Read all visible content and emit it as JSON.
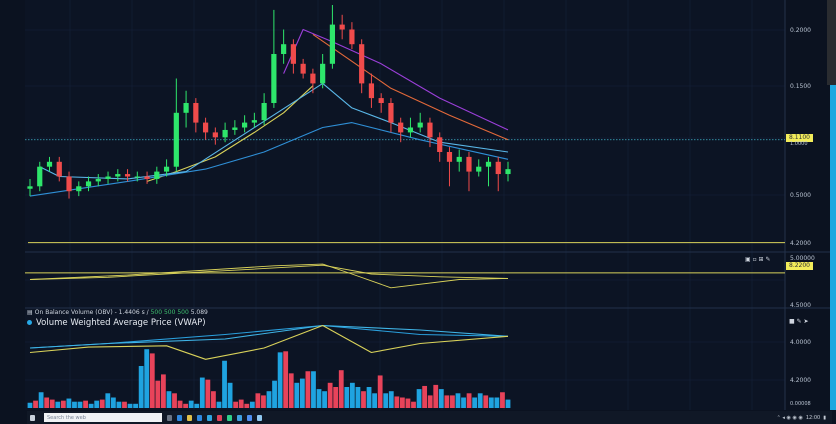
{
  "colors": {
    "up": "#2ee66b",
    "down": "#f04b4b",
    "ma_purple": "#9b3fd9",
    "ma_orange": "#e3693a",
    "ma_yellow": "#d9d25a",
    "ma_blue": "#2f8fd6",
    "ma_lightblue": "#5ab7e8",
    "vol_up": "#1fa3e0",
    "vol_down": "#e8435a",
    "vwap_blue": "#2a9fdc",
    "vwap_yellow": "#d9d25a",
    "background": "#0b1220"
  },
  "price_axis": [
    "0.2000",
    "0.1500",
    "0.5000",
    "4.2000"
  ],
  "price_tags": {
    "main": "8.1100",
    "main_sub": "1.0000",
    "oscillator": "8.2200"
  },
  "oscillator_axis": [
    "5.00000",
    "4.5000"
  ],
  "volume_axis": [
    "4.0000",
    "4.2000",
    "0.00008"
  ],
  "obv_legend": {
    "prefix": "On Balance Volume (OBV) - 1.4406 s /",
    "v1": "500",
    "v2": "500",
    "v3": "500",
    "suffix": "5.089"
  },
  "vwap_legend": "Volume Weighted Average Price (VWAP)",
  "taskbar": {
    "search_placeholder": "Search the web",
    "tray_time": "12:00"
  },
  "chart_data": {
    "type": "candlestick",
    "ohlc": [
      [
        25,
        29,
        22,
        26
      ],
      [
        26,
        36,
        24,
        34
      ],
      [
        34,
        38,
        32,
        36
      ],
      [
        36,
        38,
        28,
        30
      ],
      [
        30,
        32,
        21,
        24
      ],
      [
        24,
        28,
        22,
        26
      ],
      [
        26,
        30,
        24,
        28
      ],
      [
        28,
        31,
        26,
        29
      ],
      [
        29,
        32,
        27,
        30
      ],
      [
        30,
        33,
        28,
        31
      ],
      [
        31,
        33,
        28,
        30
      ],
      [
        30,
        32,
        28,
        30
      ],
      [
        30,
        32,
        27,
        29
      ],
      [
        29,
        34,
        27,
        32
      ],
      [
        32,
        37,
        30,
        34
      ],
      [
        34,
        70,
        32,
        56
      ],
      [
        56,
        65,
        50,
        60
      ],
      [
        60,
        62,
        48,
        52
      ],
      [
        52,
        54,
        45,
        48
      ],
      [
        48,
        50,
        43,
        46
      ],
      [
        46,
        52,
        44,
        49
      ],
      [
        49,
        53,
        47,
        50
      ],
      [
        50,
        55,
        48,
        52
      ],
      [
        52,
        56,
        50,
        53
      ],
      [
        53,
        64,
        51,
        60
      ],
      [
        60,
        98,
        58,
        80
      ],
      [
        80,
        90,
        76,
        84
      ],
      [
        84,
        86,
        72,
        76
      ],
      [
        76,
        78,
        70,
        72
      ],
      [
        72,
        74,
        64,
        68
      ],
      [
        68,
        80,
        66,
        76
      ],
      [
        76,
        100,
        74,
        92
      ],
      [
        92,
        96,
        86,
        90
      ],
      [
        90,
        93,
        82,
        84
      ],
      [
        84,
        86,
        64,
        68
      ],
      [
        68,
        72,
        58,
        62
      ],
      [
        62,
        64,
        56,
        60
      ],
      [
        60,
        62,
        48,
        52
      ],
      [
        52,
        54,
        44,
        48
      ],
      [
        48,
        54,
        46,
        50
      ],
      [
        50,
        56,
        48,
        52
      ],
      [
        52,
        54,
        42,
        46
      ],
      [
        46,
        48,
        36,
        40
      ],
      [
        40,
        42,
        26,
        36
      ],
      [
        36,
        41,
        32,
        38
      ],
      [
        38,
        40,
        24,
        32
      ],
      [
        32,
        37,
        30,
        34
      ],
      [
        34,
        38,
        26,
        36
      ],
      [
        36,
        38,
        24,
        31
      ],
      [
        31,
        36,
        28,
        33
      ]
    ],
    "moving_averages": [
      {
        "color": "ma_purple",
        "points": [
          [
            26,
            72
          ],
          [
            28,
            90
          ],
          [
            31,
            85
          ],
          [
            36,
            76
          ],
          [
            42,
            62
          ],
          [
            49,
            49
          ]
        ]
      },
      {
        "color": "ma_orange",
        "points": [
          [
            29,
            88
          ],
          [
            33,
            77
          ],
          [
            37,
            66
          ],
          [
            43,
            55
          ],
          [
            49,
            45
          ]
        ]
      },
      {
        "color": "ma_yellow",
        "points": [
          [
            12,
            28
          ],
          [
            15,
            32
          ],
          [
            19,
            38
          ],
          [
            23,
            48
          ],
          [
            26,
            56
          ],
          [
            29,
            67
          ]
        ]
      },
      {
        "color": "ma_blue",
        "points": [
          [
            0,
            22
          ],
          [
            10,
            28
          ],
          [
            18,
            33
          ],
          [
            24,
            40
          ],
          [
            30,
            50
          ],
          [
            33,
            52
          ],
          [
            40,
            45
          ],
          [
            49,
            37
          ]
        ]
      },
      {
        "color": "ma_lightblue",
        "points": [
          [
            1,
            34
          ],
          [
            3,
            30
          ],
          [
            10,
            29
          ],
          [
            16,
            32
          ],
          [
            30,
            68
          ],
          [
            33,
            58
          ],
          [
            37,
            52
          ],
          [
            42,
            44
          ],
          [
            49,
            40
          ]
        ]
      }
    ],
    "horizontal_lines": {
      "dotted_level": 45,
      "support_level": 3
    },
    "oscillator": {
      "lines": [
        [
          [
            0,
            30
          ],
          [
            10,
            38
          ],
          [
            25,
            55
          ],
          [
            30,
            58
          ],
          [
            33,
            40
          ],
          [
            37,
            15
          ],
          [
            44,
            30
          ],
          [
            49,
            32
          ]
        ],
        [
          [
            0,
            30
          ],
          [
            8,
            34
          ],
          [
            20,
            46
          ],
          [
            30,
            56
          ],
          [
            35,
            40
          ],
          [
            42,
            35
          ],
          [
            49,
            32
          ]
        ]
      ],
      "level": 42
    },
    "vwap": [
      [
        [
          0,
          20
        ],
        [
          8,
          30
        ],
        [
          20,
          50
        ],
        [
          30,
          70
        ],
        [
          40,
          50
        ],
        [
          49,
          46
        ]
      ],
      [
        [
          0,
          20
        ],
        [
          8,
          30
        ],
        [
          20,
          40
        ],
        [
          30,
          70
        ],
        [
          40,
          60
        ],
        [
          49,
          46
        ]
      ],
      [
        [
          0,
          10
        ],
        [
          6,
          22
        ],
        [
          14,
          25
        ],
        [
          18,
          -5
        ],
        [
          24,
          20
        ],
        [
          30,
          70
        ],
        [
          35,
          10
        ],
        [
          40,
          30
        ],
        [
          49,
          46
        ]
      ]
    ],
    "volume": [
      [
        5,
        "u"
      ],
      [
        7,
        "d"
      ],
      [
        15,
        "u"
      ],
      [
        10,
        "d"
      ],
      [
        8,
        "d"
      ],
      [
        6,
        "u"
      ],
      [
        7,
        "d"
      ],
      [
        9,
        "u"
      ],
      [
        6,
        "u"
      ],
      [
        6,
        "u"
      ],
      [
        7,
        "d"
      ],
      [
        4,
        "u"
      ],
      [
        7,
        "u"
      ],
      [
        8,
        "d"
      ],
      [
        14,
        "u"
      ],
      [
        10,
        "u"
      ],
      [
        6,
        "u"
      ],
      [
        6,
        "d"
      ],
      [
        4,
        "u"
      ],
      [
        4,
        "u"
      ],
      [
        40,
        "u"
      ],
      [
        56,
        "u"
      ],
      [
        52,
        "d"
      ],
      [
        26,
        "d"
      ],
      [
        32,
        "d"
      ],
      [
        16,
        "u"
      ],
      [
        14,
        "d"
      ],
      [
        7,
        "d"
      ],
      [
        4,
        "d"
      ],
      [
        7,
        "u"
      ],
      [
        4,
        "u"
      ],
      [
        29,
        "u"
      ],
      [
        27,
        "d"
      ],
      [
        16,
        "d"
      ],
      [
        6,
        "u"
      ],
      [
        45,
        "u"
      ],
      [
        24,
        "u"
      ],
      [
        6,
        "d"
      ],
      [
        8,
        "d"
      ],
      [
        4,
        "d"
      ],
      [
        6,
        "u"
      ],
      [
        14,
        "d"
      ],
      [
        12,
        "d"
      ],
      [
        16,
        "u"
      ],
      [
        26,
        "u"
      ],
      [
        53,
        "u"
      ],
      [
        54,
        "d"
      ],
      [
        33,
        "d"
      ],
      [
        24,
        "u"
      ],
      [
        28,
        "u"
      ],
      [
        35,
        "d"
      ],
      [
        35,
        "u"
      ],
      [
        18,
        "u"
      ],
      [
        16,
        "u"
      ],
      [
        24,
        "d"
      ],
      [
        20,
        "d"
      ],
      [
        36,
        "d"
      ],
      [
        20,
        "u"
      ],
      [
        24,
        "u"
      ],
      [
        20,
        "u"
      ],
      [
        16,
        "d"
      ],
      [
        20,
        "u"
      ],
      [
        14,
        "u"
      ],
      [
        31,
        "d"
      ],
      [
        14,
        "u"
      ],
      [
        16,
        "u"
      ],
      [
        11,
        "d"
      ],
      [
        10,
        "d"
      ],
      [
        9,
        "d"
      ],
      [
        6,
        "d"
      ],
      [
        18,
        "u"
      ],
      [
        21,
        "d"
      ],
      [
        12,
        "d"
      ],
      [
        22,
        "d"
      ],
      [
        18,
        "u"
      ],
      [
        12,
        "d"
      ],
      [
        12,
        "d"
      ],
      [
        14,
        "u"
      ],
      [
        10,
        "u"
      ],
      [
        14,
        "d"
      ],
      [
        10,
        "u"
      ],
      [
        14,
        "u"
      ],
      [
        12,
        "d"
      ],
      [
        10,
        "u"
      ],
      [
        10,
        "u"
      ],
      [
        15,
        "d"
      ],
      [
        8,
        "u"
      ]
    ]
  }
}
